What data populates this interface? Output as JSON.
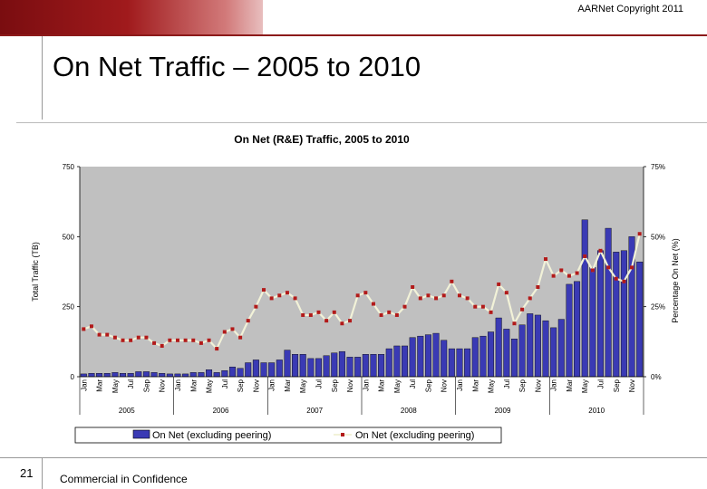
{
  "header": {
    "copyright": "AARNet Copyright 2011",
    "title": "On Net Traffic – 2005 to 2010"
  },
  "footer": {
    "page_number": "21",
    "confidentiality": "Commercial in Confidence"
  },
  "chart_data": {
    "type": "bar",
    "title": "On Net (R&E) Traffic, 2005 to 2010",
    "ylabel": "Total Traffic (TB)",
    "y2label": "Percentage On Net (%)",
    "ylim": [
      0,
      750
    ],
    "y2lim": [
      0,
      75
    ],
    "yticks": [
      "0",
      "250",
      "500",
      "750"
    ],
    "y2ticks": [
      "0%",
      "25%",
      "50%",
      "75%"
    ],
    "month_labels": [
      "Jan",
      "Mar",
      "May",
      "Jul",
      "Sep",
      "Nov"
    ],
    "years": [
      "2005",
      "2006",
      "2007",
      "2008",
      "2009",
      "2010"
    ],
    "legend": {
      "bar_label": "On Net (excluding peering)",
      "line_label": "On Net (excluding peering)",
      "position": "bottom"
    },
    "colors": {
      "plot_bg": "#c0c0c0",
      "bar_fill": "#3a3ab4",
      "line": "#f2f2d8",
      "marker": "#b21a1a"
    },
    "series": [
      {
        "type": "bar",
        "axis": "left",
        "values": [
          10,
          12,
          12,
          12,
          15,
          12,
          12,
          18,
          18,
          15,
          12,
          10,
          10,
          10,
          15,
          15,
          25,
          15,
          22,
          35,
          30,
          50,
          60,
          50,
          50,
          60,
          95,
          80,
          80,
          65,
          65,
          75,
          85,
          90,
          70,
          70,
          80,
          80,
          80,
          100,
          110,
          110,
          140,
          145,
          150,
          155,
          130,
          100,
          100,
          100,
          140,
          145,
          160,
          210,
          170,
          135,
          185,
          225,
          220,
          200,
          175,
          205,
          330,
          340,
          560,
          390,
          450,
          530,
          445,
          450,
          500,
          410
        ]
      },
      {
        "type": "line",
        "axis": "right",
        "values": [
          17,
          18,
          15,
          15,
          14,
          13,
          13,
          14,
          14,
          12,
          11,
          13,
          13,
          13,
          13,
          12,
          13,
          10,
          16,
          17,
          14,
          20,
          25,
          31,
          28,
          29,
          30,
          28,
          22,
          22,
          23,
          20,
          23,
          19,
          20,
          29,
          30,
          26,
          22,
          23,
          22,
          25,
          32,
          28,
          29,
          28,
          29,
          34,
          29,
          28,
          25,
          25,
          23,
          33,
          30,
          19,
          24,
          28,
          32,
          42,
          36,
          38,
          36,
          37,
          43,
          38,
          45,
          39,
          35,
          34,
          39,
          51
        ]
      }
    ]
  }
}
